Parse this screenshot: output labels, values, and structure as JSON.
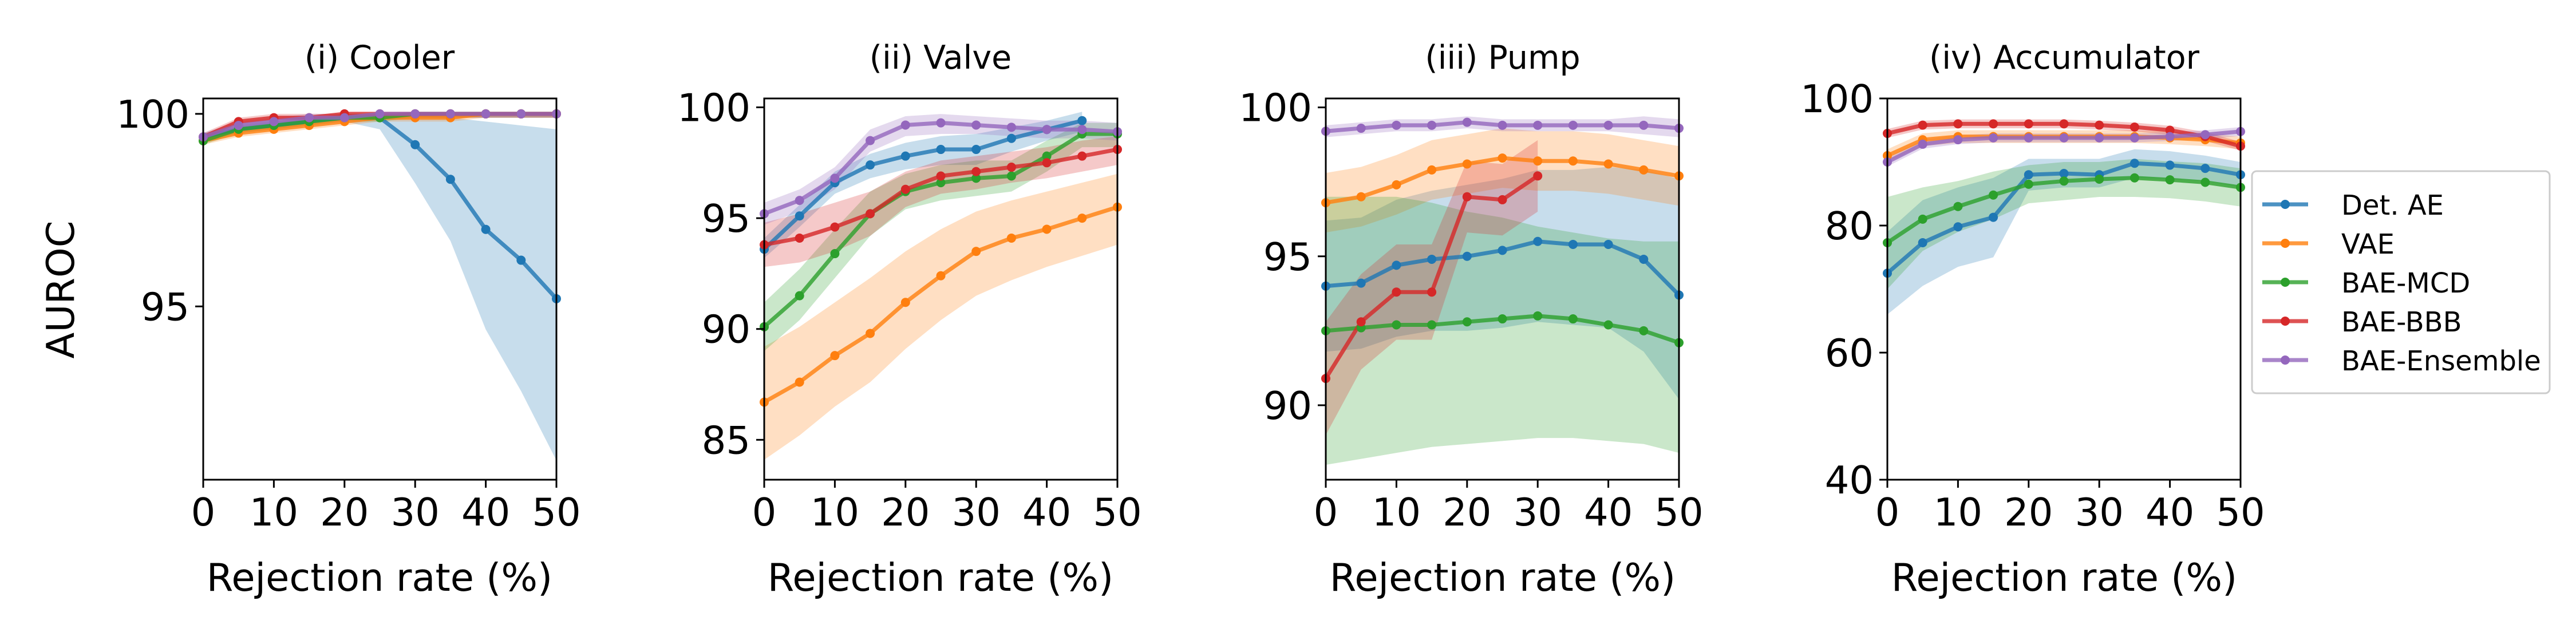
{
  "chart_data": [
    {
      "type": "line",
      "title": "(i) Cooler",
      "xlabel": "Rejection rate (%)",
      "ylabel": "AUROC",
      "xlim": [
        0,
        50
      ],
      "ylim": [
        90.5,
        100.4
      ],
      "xticks": [
        0,
        10,
        20,
        30,
        40,
        50
      ],
      "yticks": [
        95,
        100
      ],
      "x": [
        0,
        5,
        10,
        15,
        20,
        25,
        30,
        35,
        40,
        45,
        50
      ],
      "series": [
        {
          "name": "Det. AE",
          "values": [
            99.4,
            99.6,
            99.7,
            99.8,
            99.9,
            99.9,
            99.2,
            98.3,
            97.0,
            96.2,
            95.2
          ],
          "lower": [
            99.3,
            99.5,
            99.6,
            99.7,
            99.8,
            99.6,
            98.2,
            96.7,
            94.4,
            92.8,
            91.0
          ],
          "upper": [
            99.5,
            99.7,
            99.8,
            99.9,
            100.0,
            100.0,
            100.0,
            99.9,
            99.8,
            99.7,
            99.6
          ]
        },
        {
          "name": "VAE",
          "values": [
            99.3,
            99.5,
            99.6,
            99.7,
            99.8,
            99.9,
            99.9,
            99.9,
            100.0,
            100.0,
            100.0
          ],
          "lower": [
            99.2,
            99.4,
            99.5,
            99.6,
            99.7,
            99.8,
            99.8,
            99.8,
            99.9,
            99.9,
            99.9
          ],
          "upper": [
            99.4,
            99.6,
            99.7,
            99.8,
            99.9,
            100.0,
            100.0,
            100.0,
            100.0,
            100.0,
            100.0
          ]
        },
        {
          "name": "BAE-MCD",
          "values": [
            99.3,
            99.6,
            99.7,
            99.8,
            99.9,
            99.9,
            100.0,
            100.0,
            100.0,
            100.0,
            100.0
          ],
          "lower": [
            99.2,
            99.5,
            99.6,
            99.7,
            99.8,
            99.8,
            99.9,
            99.9,
            99.9,
            99.9,
            99.9
          ],
          "upper": [
            99.4,
            99.7,
            99.8,
            99.9,
            100.0,
            100.0,
            100.0,
            100.0,
            100.0,
            100.0,
            100.0
          ]
        },
        {
          "name": "BAE-BBB",
          "values": [
            99.4,
            99.8,
            99.9,
            99.9,
            100.0,
            100.0,
            100.0,
            100.0,
            100.0,
            100.0,
            100.0
          ],
          "lower": [
            99.3,
            99.7,
            99.8,
            99.8,
            99.9,
            99.9,
            99.9,
            99.9,
            99.9,
            99.9,
            99.9
          ],
          "upper": [
            99.5,
            99.9,
            100.0,
            100.0,
            100.0,
            100.0,
            100.0,
            100.0,
            100.0,
            100.0,
            100.0
          ]
        },
        {
          "name": "BAE-Ensemble",
          "values": [
            99.4,
            99.7,
            99.8,
            99.9,
            99.9,
            100.0,
            100.0,
            100.0,
            100.0,
            100.0,
            100.0
          ],
          "lower": [
            99.3,
            99.6,
            99.7,
            99.8,
            99.8,
            99.9,
            99.9,
            99.9,
            99.9,
            99.9,
            99.9
          ],
          "upper": [
            99.5,
            99.8,
            99.9,
            100.0,
            100.0,
            100.0,
            100.0,
            100.0,
            100.0,
            100.0,
            100.0
          ]
        }
      ]
    },
    {
      "type": "line",
      "title": "(ii) Valve",
      "xlabel": "Rejection rate (%)",
      "ylabel": "",
      "xlim": [
        0,
        50
      ],
      "ylim": [
        83.2,
        100.4
      ],
      "xticks": [
        0,
        10,
        20,
        30,
        40,
        50
      ],
      "yticks": [
        85,
        90,
        95,
        100
      ],
      "x": [
        0,
        5,
        10,
        15,
        20,
        25,
        30,
        35,
        40,
        45,
        50
      ],
      "series": [
        {
          "name": "Det. AE",
          "values": [
            93.6,
            95.1,
            96.6,
            97.4,
            97.8,
            98.1,
            98.1,
            98.6,
            99.0,
            99.4,
            null
          ],
          "lower": [
            93.2,
            94.6,
            96.1,
            96.8,
            97.2,
            97.4,
            97.4,
            98.0,
            98.5,
            98.9,
            null
          ],
          "upper": [
            94.1,
            95.6,
            97.1,
            97.9,
            98.4,
            98.7,
            98.8,
            99.1,
            99.4,
            99.8,
            null
          ]
        },
        {
          "name": "VAE",
          "values": [
            86.7,
            87.6,
            88.8,
            89.8,
            91.2,
            92.4,
            93.5,
            94.1,
            94.5,
            95.0,
            95.5
          ],
          "lower": [
            84.1,
            85.2,
            86.5,
            87.6,
            89.1,
            90.4,
            91.5,
            92.2,
            92.8,
            93.3,
            93.8
          ],
          "upper": [
            89.2,
            90.1,
            91.2,
            92.3,
            93.5,
            94.5,
            95.3,
            95.8,
            96.2,
            96.6,
            97.0
          ]
        },
        {
          "name": "BAE-MCD",
          "values": [
            90.1,
            91.5,
            93.4,
            95.2,
            96.2,
            96.6,
            96.8,
            96.9,
            97.8,
            98.8,
            98.8
          ],
          "lower": [
            89.0,
            90.4,
            92.3,
            94.2,
            95.4,
            95.8,
            96.0,
            96.2,
            97.1,
            98.2,
            98.2
          ],
          "upper": [
            91.2,
            92.7,
            94.5,
            96.2,
            97.0,
            97.4,
            97.6,
            97.6,
            98.5,
            99.3,
            99.3
          ]
        },
        {
          "name": "BAE-BBB",
          "values": [
            93.8,
            94.1,
            94.6,
            95.2,
            96.3,
            96.9,
            97.1,
            97.3,
            97.5,
            97.8,
            98.1
          ],
          "lower": [
            92.8,
            93.0,
            93.5,
            94.2,
            95.5,
            96.1,
            96.3,
            96.6,
            96.8,
            97.1,
            97.4
          ],
          "upper": [
            94.8,
            95.2,
            95.7,
            96.2,
            97.1,
            97.6,
            97.8,
            98.0,
            98.2,
            98.5,
            98.7
          ]
        },
        {
          "name": "BAE-Ensemble",
          "values": [
            95.2,
            95.8,
            96.8,
            98.5,
            99.2,
            99.3,
            99.2,
            99.1,
            99.0,
            99.0,
            98.9
          ],
          "lower": [
            94.7,
            95.3,
            96.3,
            98.0,
            98.7,
            98.8,
            98.8,
            98.7,
            98.6,
            98.6,
            98.5
          ],
          "upper": [
            95.7,
            96.3,
            97.3,
            99.0,
            99.6,
            99.7,
            99.6,
            99.5,
            99.4,
            99.4,
            99.3
          ]
        }
      ]
    },
    {
      "type": "line",
      "title": "(iii) Pump",
      "xlabel": "Rejection rate (%)",
      "ylabel": "",
      "xlim": [
        0,
        50
      ],
      "ylim": [
        87.5,
        100.3
      ],
      "xticks": [
        0,
        10,
        20,
        30,
        40,
        50
      ],
      "yticks": [
        90,
        95,
        100
      ],
      "x": [
        0,
        5,
        10,
        15,
        20,
        25,
        30,
        35,
        40,
        45,
        50
      ],
      "series": [
        {
          "name": "Det. AE",
          "values": [
            94.0,
            94.1,
            94.7,
            94.9,
            95.0,
            95.2,
            95.5,
            95.4,
            95.4,
            94.9,
            93.7
          ],
          "lower": [
            91.8,
            91.9,
            92.3,
            92.5,
            92.5,
            92.6,
            92.8,
            92.7,
            92.6,
            91.8,
            90.2
          ],
          "upper": [
            96.2,
            96.3,
            96.9,
            97.2,
            97.4,
            97.6,
            97.9,
            97.9,
            98.0,
            97.9,
            97.6
          ]
        },
        {
          "name": "VAE",
          "values": [
            96.8,
            97.0,
            97.4,
            97.9,
            98.1,
            98.3,
            98.2,
            98.2,
            98.1,
            97.9,
            97.7
          ],
          "lower": [
            95.8,
            96.0,
            96.4,
            96.9,
            97.1,
            97.3,
            97.2,
            97.2,
            97.1,
            96.9,
            96.7
          ],
          "upper": [
            97.8,
            98.0,
            98.4,
            98.9,
            99.1,
            99.3,
            99.2,
            99.2,
            99.1,
            98.9,
            98.7
          ]
        },
        {
          "name": "BAE-MCD",
          "values": [
            92.5,
            92.6,
            92.7,
            92.7,
            92.8,
            92.9,
            93.0,
            92.9,
            92.7,
            92.5,
            92.1
          ],
          "lower": [
            88.0,
            88.2,
            88.4,
            88.6,
            88.7,
            88.8,
            88.9,
            88.9,
            88.8,
            88.7,
            88.4
          ],
          "upper": [
            97.0,
            97.0,
            97.0,
            96.8,
            96.5,
            96.3,
            96.0,
            95.8,
            95.6,
            95.5,
            95.5
          ]
        },
        {
          "name": "BAE-BBB",
          "values": [
            90.9,
            92.8,
            93.8,
            93.8,
            97.0,
            96.9,
            97.7,
            null,
            null,
            null,
            null
          ],
          "lower": [
            89.0,
            91.2,
            92.2,
            92.2,
            95.8,
            95.7,
            96.5,
            null,
            null,
            null,
            null
          ],
          "upper": [
            92.8,
            94.4,
            95.4,
            95.4,
            98.2,
            98.1,
            98.9,
            null,
            null,
            null,
            null
          ]
        },
        {
          "name": "BAE-Ensemble",
          "values": [
            99.2,
            99.3,
            99.4,
            99.4,
            99.5,
            99.4,
            99.4,
            99.4,
            99.4,
            99.4,
            99.3
          ],
          "lower": [
            99.0,
            99.1,
            99.2,
            99.2,
            99.3,
            99.2,
            99.2,
            99.2,
            99.2,
            99.1,
            99.0
          ],
          "upper": [
            99.4,
            99.5,
            99.6,
            99.6,
            99.7,
            99.6,
            99.6,
            99.6,
            99.6,
            99.7,
            99.6
          ]
        }
      ]
    },
    {
      "type": "line",
      "title": "(iv) Accumulator",
      "xlabel": "Rejection rate (%)",
      "ylabel": "",
      "xlim": [
        0,
        50
      ],
      "ylim": [
        40,
        100
      ],
      "xticks": [
        0,
        10,
        20,
        30,
        40,
        50
      ],
      "yticks": [
        40,
        60,
        80,
        100
      ],
      "x": [
        0,
        5,
        10,
        15,
        20,
        25,
        30,
        35,
        40,
        45,
        50
      ],
      "series": [
        {
          "name": "Det. AE",
          "values": [
            72.5,
            77.3,
            79.8,
            81.3,
            88.0,
            88.2,
            88.0,
            89.8,
            89.5,
            89.0,
            88.0
          ],
          "lower": [
            66.0,
            70.5,
            73.5,
            75.0,
            85.5,
            86.0,
            86.0,
            87.5,
            87.3,
            87.0,
            86.0
          ],
          "upper": [
            79.0,
            84.0,
            86.0,
            87.5,
            90.5,
            90.5,
            90.5,
            92.0,
            91.7,
            91.0,
            90.0
          ]
        },
        {
          "name": "VAE",
          "values": [
            91.0,
            93.5,
            94.0,
            94.0,
            94.0,
            94.0,
            94.0,
            94.0,
            93.8,
            93.5,
            93.0
          ],
          "lower": [
            90.0,
            92.5,
            93.0,
            93.0,
            93.0,
            93.0,
            93.0,
            93.0,
            92.8,
            92.5,
            92.0
          ],
          "upper": [
            92.0,
            94.5,
            95.0,
            95.0,
            95.0,
            95.0,
            95.0,
            95.0,
            94.8,
            94.5,
            94.0
          ]
        },
        {
          "name": "BAE-MCD",
          "values": [
            77.3,
            81.0,
            83.0,
            84.8,
            86.5,
            87.0,
            87.3,
            87.5,
            87.2,
            86.8,
            86.0
          ],
          "lower": [
            70.0,
            76.0,
            79.0,
            81.0,
            83.5,
            84.0,
            84.5,
            84.5,
            84.3,
            83.8,
            83.0
          ],
          "upper": [
            84.5,
            86.0,
            87.0,
            88.5,
            89.5,
            90.0,
            90.0,
            90.5,
            90.1,
            89.8,
            89.0
          ]
        },
        {
          "name": "BAE-BBB",
          "values": [
            94.5,
            95.8,
            96.0,
            96.0,
            96.0,
            96.0,
            95.8,
            95.5,
            95.0,
            94.0,
            92.5
          ],
          "lower": [
            93.8,
            95.1,
            95.3,
            95.3,
            95.3,
            95.3,
            95.1,
            94.8,
            94.3,
            93.3,
            91.8
          ],
          "upper": [
            95.2,
            96.5,
            96.7,
            96.7,
            96.7,
            96.7,
            96.5,
            96.2,
            95.7,
            94.7,
            93.2
          ]
        },
        {
          "name": "BAE-Ensemble",
          "values": [
            90.0,
            92.8,
            93.5,
            93.8,
            93.8,
            93.8,
            93.8,
            93.8,
            94.0,
            94.3,
            94.8
          ],
          "lower": [
            89.3,
            92.1,
            92.8,
            93.1,
            93.1,
            93.1,
            93.1,
            93.1,
            93.3,
            93.6,
            94.1
          ],
          "upper": [
            90.7,
            93.5,
            94.2,
            94.5,
            94.5,
            94.5,
            94.5,
            94.5,
            94.7,
            95.0,
            95.5
          ]
        }
      ]
    }
  ],
  "legend": {
    "placement": "right",
    "entries": [
      "Det. AE",
      "VAE",
      "BAE-MCD",
      "BAE-BBB",
      "BAE-Ensemble"
    ]
  },
  "colors": {
    "Det. AE": "#1f77b4",
    "VAE": "#ff7f0e",
    "BAE-MCD": "#2ca02c",
    "BAE-BBB": "#d62728",
    "BAE-Ensemble": "#9467bd"
  }
}
